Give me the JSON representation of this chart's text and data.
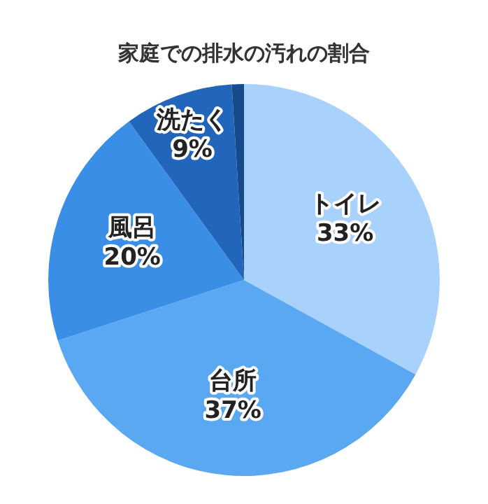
{
  "chart_data": {
    "type": "pie",
    "title": "家庭での排水の汚れの割合",
    "categories": [
      "トイレ",
      "台所",
      "風呂",
      "洗たく",
      null
    ],
    "values": [
      33,
      37,
      20,
      9,
      1
    ],
    "value_labels": [
      "33%",
      "37%",
      "20%",
      "9%",
      null
    ],
    "colors": [
      "#a8d1fb",
      "#5aa8f2",
      "#3a8ee6",
      "#2266bb",
      "#164a8a"
    ],
    "legend": false
  }
}
